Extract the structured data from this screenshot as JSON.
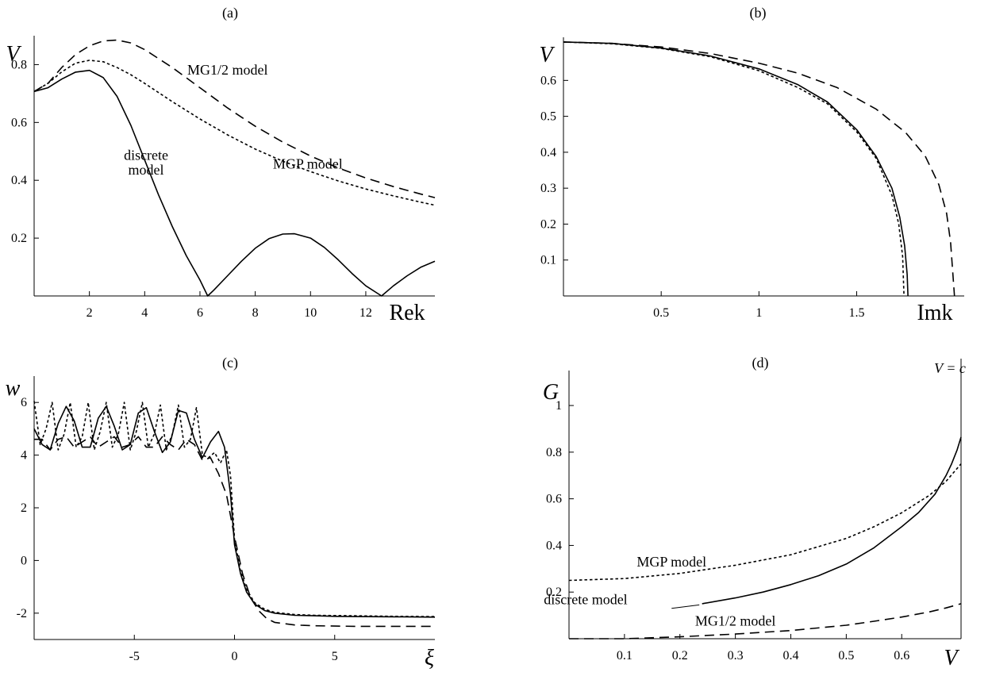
{
  "chart_data": [
    {
      "panel": "(a)",
      "type": "line",
      "xlabel": "Rek",
      "ylabel": "V",
      "xlim": [
        0,
        14.5
      ],
      "ylim": [
        0,
        0.9
      ],
      "xticks": [
        2,
        4,
        6,
        8,
        10,
        12
      ],
      "yticks": [
        0.2,
        0.4,
        0.6,
        0.8
      ],
      "series": [
        {
          "name": "discrete model",
          "style": "solid",
          "x": [
            0,
            0.5,
            1,
            1.5,
            2,
            2.5,
            3,
            3.5,
            4,
            4.5,
            5,
            5.5,
            6,
            6.28,
            6.5,
            7,
            7.5,
            8,
            8.5,
            9,
            9.42,
            10,
            10.5,
            11,
            11.5,
            12,
            12.57,
            13,
            13.5,
            14,
            14.5
          ],
          "y": [
            0.707,
            0.72,
            0.75,
            0.774,
            0.78,
            0.755,
            0.69,
            0.59,
            0.47,
            0.35,
            0.24,
            0.14,
            0.055,
            0.0,
            0.02,
            0.07,
            0.12,
            0.165,
            0.198,
            0.214,
            0.215,
            0.2,
            0.168,
            0.125,
            0.078,
            0.035,
            0.0,
            0.035,
            0.07,
            0.1,
            0.12
          ]
        },
        {
          "name": "MGP model",
          "style": "dotted",
          "x": [
            0,
            0.5,
            1,
            1.5,
            2,
            2.5,
            3,
            3.5,
            4,
            5,
            6,
            7,
            8,
            9,
            10,
            11,
            12,
            13,
            14,
            14.5
          ],
          "y": [
            0.707,
            0.735,
            0.775,
            0.805,
            0.815,
            0.81,
            0.79,
            0.765,
            0.735,
            0.672,
            0.612,
            0.557,
            0.508,
            0.466,
            0.43,
            0.398,
            0.37,
            0.346,
            0.324,
            0.314
          ]
        },
        {
          "name": "MG1/2 model",
          "style": "dashed",
          "x": [
            0,
            0.5,
            1,
            1.5,
            2,
            2.5,
            3,
            3.5,
            4,
            5,
            6,
            7,
            8,
            9,
            10,
            11,
            12,
            13,
            14,
            14.5
          ],
          "y": [
            0.707,
            0.735,
            0.79,
            0.835,
            0.865,
            0.882,
            0.885,
            0.875,
            0.852,
            0.79,
            0.72,
            0.65,
            0.587,
            0.532,
            0.484,
            0.443,
            0.408,
            0.378,
            0.352,
            0.34
          ]
        }
      ],
      "annotations": [
        {
          "text": "MG1/2 model",
          "x": 7,
          "y": 0.765
        },
        {
          "text": "discrete model",
          "x": 4.05,
          "y": 0.47
        },
        {
          "text": "discrete model",
          "x": 4.05,
          "y": 0.42
        },
        {
          "text": "MGP model",
          "x": 9.9,
          "y": 0.44
        }
      ]
    },
    {
      "panel": "(b)",
      "type": "line",
      "xlabel": "Imk",
      "ylabel": "V",
      "xlim": [
        0,
        2.05
      ],
      "ylim": [
        0,
        0.72
      ],
      "xticks": [
        0.5,
        1,
        1.5
      ],
      "yticks": [
        0.1,
        0.2,
        0.3,
        0.4,
        0.5,
        0.6
      ],
      "series": [
        {
          "name": "discrete model",
          "style": "solid",
          "x": [
            0,
            0.25,
            0.5,
            0.75,
            1.0,
            1.2,
            1.35,
            1.5,
            1.6,
            1.68,
            1.72,
            1.745,
            1.758,
            1.762
          ],
          "y": [
            0.707,
            0.703,
            0.69,
            0.668,
            0.632,
            0.588,
            0.54,
            0.463,
            0.388,
            0.3,
            0.22,
            0.14,
            0.06,
            0.0
          ]
        },
        {
          "name": "MGP model",
          "style": "dotted",
          "x": [
            0,
            0.25,
            0.5,
            0.75,
            1.0,
            1.2,
            1.35,
            1.5,
            1.6,
            1.68,
            1.715,
            1.735,
            1.742
          ],
          "y": [
            0.707,
            0.702,
            0.689,
            0.666,
            0.627,
            0.58,
            0.535,
            0.457,
            0.383,
            0.28,
            0.2,
            0.11,
            0.0
          ]
        },
        {
          "name": "MG1/2 model",
          "style": "dashed",
          "x": [
            0,
            0.25,
            0.5,
            0.75,
            1.0,
            1.2,
            1.4,
            1.6,
            1.75,
            1.85,
            1.92,
            1.96,
            1.98,
            2.0
          ],
          "y": [
            0.707,
            0.703,
            0.693,
            0.675,
            0.648,
            0.62,
            0.58,
            0.52,
            0.455,
            0.39,
            0.31,
            0.23,
            0.15,
            0.0
          ]
        }
      ]
    },
    {
      "panel": "(c)",
      "type": "line",
      "xlabel": "ξ",
      "ylabel": "w",
      "xlim": [
        -10,
        10
      ],
      "ylim": [
        -3,
        7
      ],
      "xticks": [
        -5,
        0,
        5
      ],
      "yticks": [
        -2,
        0,
        2,
        4,
        6
      ],
      "series": [
        {
          "name": "discrete model",
          "style": "solid",
          "x": [
            -10,
            -9.6,
            -9.2,
            -8.8,
            -8.4,
            -8.0,
            -7.6,
            -7.2,
            -6.8,
            -6.4,
            -6.0,
            -5.6,
            -5.2,
            -4.8,
            -4.4,
            -4.0,
            -3.6,
            -3.2,
            -2.8,
            -2.4,
            -2.0,
            -1.6,
            -1.2,
            -0.8,
            -0.5,
            -0.2,
            0,
            0.3,
            0.6,
            1.0,
            1.5,
            2,
            3,
            4,
            5,
            6,
            8,
            10
          ],
          "y": [
            5.0,
            4.4,
            4.2,
            5.2,
            5.85,
            5.3,
            4.3,
            4.3,
            5.4,
            5.85,
            5.1,
            4.2,
            4.4,
            5.6,
            5.8,
            4.9,
            4.1,
            4.5,
            5.7,
            5.6,
            4.6,
            3.9,
            4.5,
            4.9,
            4.3,
            2.5,
            0.6,
            -0.5,
            -1.2,
            -1.65,
            -1.9,
            -2.0,
            -2.08,
            -2.1,
            -2.12,
            -2.13,
            -2.14,
            -2.15
          ]
        },
        {
          "name": "MGP model",
          "style": "dotted",
          "x": [
            -10,
            -9.7,
            -9.4,
            -9.1,
            -8.8,
            -8.5,
            -8.2,
            -7.9,
            -7.6,
            -7.3,
            -7.0,
            -6.7,
            -6.4,
            -6.1,
            -5.8,
            -5.5,
            -5.2,
            -4.9,
            -4.6,
            -4.3,
            -4.0,
            -3.7,
            -3.4,
            -3.1,
            -2.8,
            -2.5,
            -2.2,
            -1.9,
            -1.6,
            -1.3,
            -1.0,
            -0.7,
            -0.4,
            -0.2,
            0,
            0.3,
            0.6,
            1.0,
            1.5,
            2,
            3,
            4,
            6,
            8,
            10
          ],
          "y": [
            6.05,
            4.4,
            5.0,
            6.0,
            4.2,
            4.8,
            6.0,
            4.3,
            4.7,
            6.0,
            4.2,
            4.9,
            6.0,
            4.3,
            4.8,
            6.0,
            4.2,
            4.9,
            6.0,
            4.3,
            4.8,
            5.9,
            4.2,
            4.8,
            5.9,
            4.3,
            4.6,
            5.8,
            4.0,
            3.9,
            4.1,
            3.7,
            4.2,
            3.2,
            0.8,
            -0.4,
            -1.1,
            -1.6,
            -1.85,
            -1.97,
            -2.05,
            -2.08,
            -2.1,
            -2.12,
            -2.13
          ]
        },
        {
          "name": "MG1/2 model",
          "style": "dashed",
          "x": [
            -10,
            -9.6,
            -9.2,
            -8.8,
            -8.4,
            -8.0,
            -7.6,
            -7.2,
            -6.8,
            -6.4,
            -6.0,
            -5.6,
            -5.2,
            -4.8,
            -4.4,
            -4.0,
            -3.6,
            -3.2,
            -2.8,
            -2.4,
            -2.0,
            -1.6,
            -1.2,
            -0.8,
            -0.4,
            0,
            0.4,
            0.8,
            1.2,
            1.6,
            2,
            3,
            4,
            6,
            8,
            10
          ],
          "y": [
            4.6,
            4.6,
            4.2,
            4.6,
            4.7,
            4.3,
            4.5,
            4.7,
            4.3,
            4.5,
            4.7,
            4.3,
            4.4,
            4.7,
            4.3,
            4.3,
            4.7,
            4.4,
            4.2,
            4.6,
            4.4,
            3.8,
            3.9,
            3.3,
            2.5,
            0.9,
            -0.5,
            -1.4,
            -1.9,
            -2.2,
            -2.35,
            -2.45,
            -2.48,
            -2.5,
            -2.5,
            -2.5
          ]
        }
      ]
    },
    {
      "panel": "(d)",
      "type": "line",
      "xlabel": "V",
      "ylabel": "G",
      "xlim": [
        0,
        0.707
      ],
      "ylim": [
        0,
        1.15
      ],
      "xticks": [
        0.1,
        0.2,
        0.3,
        0.4,
        0.5,
        0.6
      ],
      "yticks": [
        0.2,
        0.4,
        0.6,
        0.8,
        1
      ],
      "vline": {
        "x": 0.707,
        "label": "V = c"
      },
      "series": [
        {
          "name": "discrete model",
          "style": "solid",
          "x": [
            0.24,
            0.3,
            0.35,
            0.4,
            0.45,
            0.5,
            0.55,
            0.6,
            0.63,
            0.66,
            0.68,
            0.69,
            0.7,
            0.707
          ],
          "y": [
            0.15,
            0.175,
            0.2,
            0.232,
            0.27,
            0.32,
            0.39,
            0.48,
            0.54,
            0.62,
            0.7,
            0.75,
            0.81,
            0.865
          ]
        },
        {
          "name": "MGP model",
          "style": "dotted",
          "x": [
            0,
            0.1,
            0.2,
            0.3,
            0.4,
            0.5,
            0.55,
            0.6,
            0.65,
            0.68,
            0.707
          ],
          "y": [
            0.25,
            0.258,
            0.28,
            0.315,
            0.36,
            0.43,
            0.48,
            0.54,
            0.615,
            0.675,
            0.75
          ]
        },
        {
          "name": "MG1/2 model",
          "style": "dashed",
          "x": [
            0,
            0.1,
            0.2,
            0.3,
            0.4,
            0.5,
            0.55,
            0.6,
            0.65,
            0.68,
            0.707
          ],
          "y": [
            0.0,
            0.0,
            0.008,
            0.02,
            0.035,
            0.058,
            0.075,
            0.093,
            0.115,
            0.132,
            0.15
          ]
        }
      ],
      "annotations": [
        {
          "text": "MGP model",
          "x": 0.185,
          "y": 0.31
        },
        {
          "text": "discrete model",
          "x": 0.03,
          "y": 0.148
        },
        {
          "text": "MG1/2 model",
          "x": 0.3,
          "y": 0.056
        }
      ]
    }
  ]
}
